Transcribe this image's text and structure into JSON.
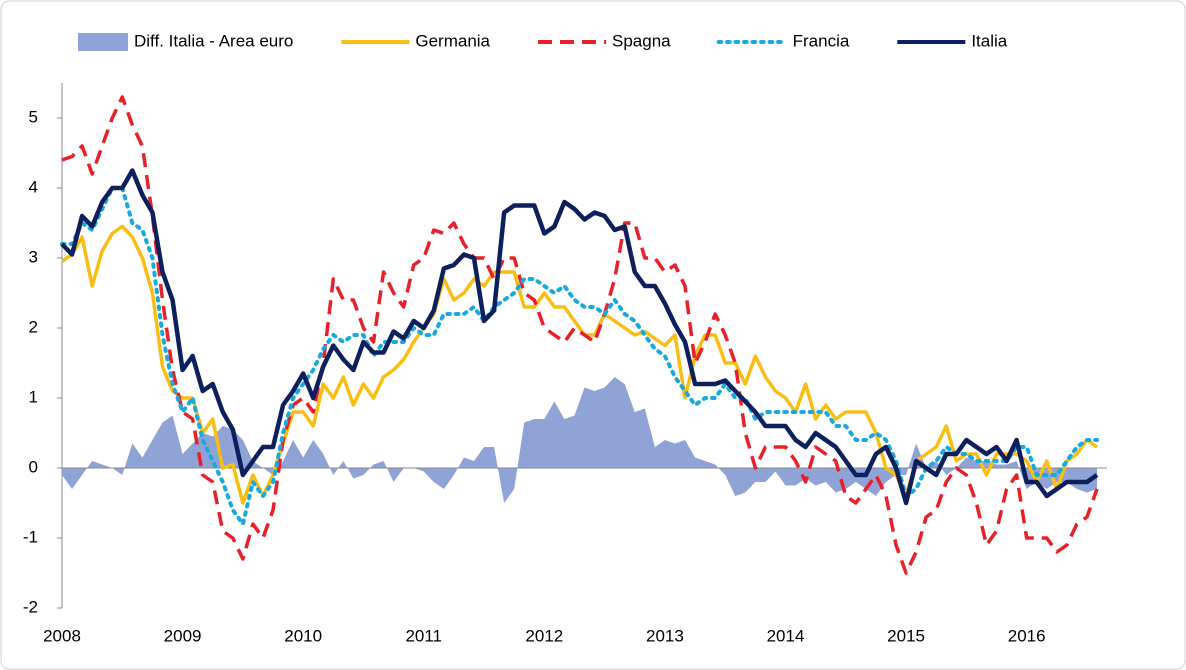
{
  "chart_data": {
    "type": "line",
    "categories": [
      "2008",
      null,
      null,
      null,
      null,
      null,
      null,
      null,
      null,
      null,
      null,
      null,
      "2009",
      null,
      null,
      null,
      null,
      null,
      null,
      null,
      null,
      null,
      null,
      null,
      "2010",
      null,
      null,
      null,
      null,
      null,
      null,
      null,
      null,
      null,
      null,
      null,
      "2011",
      null,
      null,
      null,
      null,
      null,
      null,
      null,
      null,
      null,
      null,
      null,
      "2012",
      null,
      null,
      null,
      null,
      null,
      null,
      null,
      null,
      null,
      null,
      null,
      "2013",
      null,
      null,
      null,
      null,
      null,
      null,
      null,
      null,
      null,
      null,
      null,
      "2014",
      null,
      null,
      null,
      null,
      null,
      null,
      null,
      null,
      null,
      null,
      null,
      "2015",
      null,
      null,
      null,
      null,
      null,
      null,
      null,
      null,
      null,
      null,
      null,
      "2016",
      null,
      null,
      null,
      null,
      null,
      null,
      null
    ],
    "ylim": [
      -2,
      5.5
    ],
    "yticks": [
      -2,
      -1,
      0,
      1,
      2,
      3,
      4,
      5
    ],
    "series": [
      {
        "name": "Diff. Italia - Area euro",
        "color": "#8fa3d6",
        "style": "area",
        "values": [
          -0.1,
          -0.3,
          -0.1,
          0.1,
          0.05,
          0.0,
          -0.1,
          0.35,
          0.15,
          0.4,
          0.65,
          0.75,
          0.2,
          0.35,
          0.5,
          0.45,
          0.6,
          0.55,
          0.4,
          0.1,
          0.0,
          -0.1,
          0.1,
          0.4,
          0.15,
          0.4,
          0.2,
          -0.1,
          0.1,
          -0.15,
          -0.1,
          0.05,
          0.1,
          -0.2,
          0.0,
          0.0,
          -0.05,
          -0.2,
          -0.3,
          -0.1,
          0.15,
          0.1,
          0.3,
          0.3,
          -0.5,
          -0.3,
          0.65,
          0.7,
          0.7,
          0.95,
          0.7,
          0.75,
          1.15,
          1.1,
          1.15,
          1.3,
          1.2,
          0.8,
          0.85,
          0.3,
          0.4,
          0.35,
          0.4,
          0.15,
          0.1,
          0.05,
          -0.1,
          -0.4,
          -0.35,
          -0.2,
          -0.2,
          -0.05,
          -0.25,
          -0.25,
          -0.15,
          -0.25,
          -0.2,
          -0.35,
          -0.3,
          -0.2,
          -0.3,
          -0.4,
          -0.2,
          -0.1,
          -0.1,
          0.35,
          0.0,
          0.1,
          -0.1,
          0.0,
          0.15,
          0.1,
          0.1,
          0.05,
          0.05,
          0.1,
          -0.3,
          -0.2,
          -0.3,
          -0.2,
          -0.2,
          -0.3,
          -0.35,
          -0.3
        ]
      },
      {
        "name": "Germania",
        "color": "#f9be14",
        "style": "solid",
        "values": [
          2.95,
          3.05,
          3.3,
          2.6,
          3.1,
          3.35,
          3.45,
          3.3,
          3.0,
          2.5,
          1.45,
          1.1,
          1.0,
          1.0,
          0.5,
          0.7,
          0.0,
          0.05,
          -0.5,
          -0.1,
          -0.4,
          -0.1,
          0.35,
          0.8,
          0.8,
          0.6,
          1.2,
          1.0,
          1.3,
          0.9,
          1.2,
          1.0,
          1.3,
          1.4,
          1.55,
          1.8,
          2.0,
          2.2,
          2.7,
          2.4,
          2.5,
          2.7,
          2.6,
          2.8,
          2.8,
          2.8,
          2.3,
          2.3,
          2.5,
          2.3,
          2.3,
          2.1,
          1.9,
          1.9,
          2.2,
          2.1,
          2.0,
          1.9,
          1.95,
          1.85,
          1.75,
          1.9,
          1.0,
          1.6,
          1.9,
          1.9,
          1.5,
          1.5,
          1.2,
          1.6,
          1.3,
          1.1,
          1.0,
          0.8,
          1.2,
          0.7,
          0.9,
          0.7,
          0.8,
          0.8,
          0.8,
          0.5,
          0.0,
          -0.1,
          -0.4,
          0.1,
          0.2,
          0.3,
          0.6,
          0.1,
          0.2,
          0.2,
          -0.1,
          0.2,
          0.2,
          0.2,
          0.1,
          -0.2,
          0.1,
          -0.3,
          0.1,
          0.2,
          0.4,
          0.3
        ]
      },
      {
        "name": "Spagna",
        "color": "#e8202a",
        "style": "dashed",
        "values": [
          4.4,
          4.45,
          4.6,
          4.2,
          4.6,
          5.0,
          5.3,
          4.9,
          4.6,
          3.6,
          2.4,
          1.4,
          0.8,
          0.7,
          -0.1,
          -0.2,
          -0.9,
          -1.0,
          -1.3,
          -0.8,
          -1.0,
          -0.6,
          0.4,
          0.9,
          1.0,
          0.8,
          1.5,
          2.7,
          2.4,
          2.4,
          2.0,
          1.8,
          2.8,
          2.5,
          2.3,
          2.9,
          3.0,
          3.4,
          3.35,
          3.5,
          3.2,
          3.0,
          3.0,
          2.7,
          3.0,
          3.0,
          2.5,
          2.4,
          2.0,
          1.9,
          1.8,
          2.0,
          1.9,
          1.8,
          2.2,
          2.7,
          3.5,
          3.5,
          3.0,
          3.0,
          2.8,
          2.9,
          2.6,
          1.5,
          1.8,
          2.2,
          1.9,
          1.5,
          0.5,
          0.0,
          0.3,
          0.3,
          0.3,
          0.1,
          -0.2,
          0.3,
          0.2,
          0.1,
          -0.4,
          -0.5,
          -0.3,
          -0.1,
          -0.4,
          -1.1,
          -1.5,
          -1.2,
          -0.7,
          -0.6,
          -0.2,
          0.0,
          -0.1,
          -0.5,
          -1.1,
          -0.9,
          -0.3,
          -0.1,
          -1.0,
          -1.0,
          -1.0,
          -1.2,
          -1.1,
          -0.8,
          -0.7,
          -0.3
        ]
      },
      {
        "name": "Francia",
        "color": "#17a9e0",
        "style": "dotted",
        "values": [
          3.2,
          3.2,
          3.5,
          3.4,
          3.7,
          4.0,
          4.0,
          3.5,
          3.4,
          3.0,
          1.9,
          1.2,
          0.8,
          1.0,
          0.4,
          0.1,
          -0.2,
          -0.6,
          -0.8,
          -0.2,
          -0.4,
          -0.2,
          0.5,
          1.0,
          1.2,
          1.4,
          1.7,
          1.9,
          1.8,
          1.9,
          1.9,
          1.6,
          1.8,
          1.8,
          1.8,
          2.0,
          1.9,
          1.9,
          2.2,
          2.2,
          2.2,
          2.3,
          2.1,
          2.3,
          2.4,
          2.5,
          2.7,
          2.7,
          2.6,
          2.5,
          2.6,
          2.4,
          2.3,
          2.3,
          2.2,
          2.4,
          2.2,
          2.1,
          1.9,
          1.7,
          1.6,
          1.3,
          1.1,
          0.9,
          1.0,
          1.0,
          1.2,
          1.0,
          1.0,
          0.7,
          0.8,
          0.8,
          0.8,
          0.8,
          0.8,
          0.8,
          0.8,
          0.6,
          0.6,
          0.4,
          0.4,
          0.5,
          0.4,
          0.1,
          -0.4,
          -0.3,
          0.0,
          0.1,
          0.3,
          0.2,
          0.2,
          0.1,
          0.1,
          0.1,
          0.1,
          0.3,
          0.3,
          -0.1,
          -0.1,
          -0.1,
          0.1,
          0.3,
          0.4,
          0.4
        ]
      },
      {
        "name": "Italia",
        "color": "#0d1f5c",
        "style": "solid",
        "values": [
          3.2,
          3.05,
          3.6,
          3.45,
          3.8,
          4.0,
          4.0,
          4.25,
          3.9,
          3.65,
          2.8,
          2.4,
          1.4,
          1.6,
          1.1,
          1.2,
          0.8,
          0.55,
          -0.1,
          0.1,
          0.3,
          0.3,
          0.9,
          1.1,
          1.35,
          1.0,
          1.45,
          1.75,
          1.55,
          1.4,
          1.8,
          1.65,
          1.65,
          1.95,
          1.85,
          2.1,
          2.0,
          2.25,
          2.85,
          2.9,
          3.05,
          3.0,
          2.1,
          2.25,
          3.65,
          3.75,
          3.75,
          3.75,
          3.35,
          3.45,
          3.8,
          3.7,
          3.55,
          3.65,
          3.6,
          3.4,
          3.45,
          2.8,
          2.6,
          2.6,
          2.35,
          2.05,
          1.8,
          1.2,
          1.2,
          1.2,
          1.25,
          1.1,
          0.95,
          0.8,
          0.6,
          0.6,
          0.6,
          0.4,
          0.3,
          0.5,
          0.4,
          0.3,
          0.1,
          -0.1,
          -0.1,
          0.2,
          0.3,
          0,
          -0.5,
          0.1,
          0,
          -0.1,
          0.2,
          0.2,
          0.4,
          0.3,
          0.2,
          0.3,
          0.1,
          0.4,
          -0.2,
          -0.2,
          -0.4,
          -0.3,
          -0.2,
          -0.2,
          -0.2,
          -0.1
        ]
      }
    ]
  }
}
